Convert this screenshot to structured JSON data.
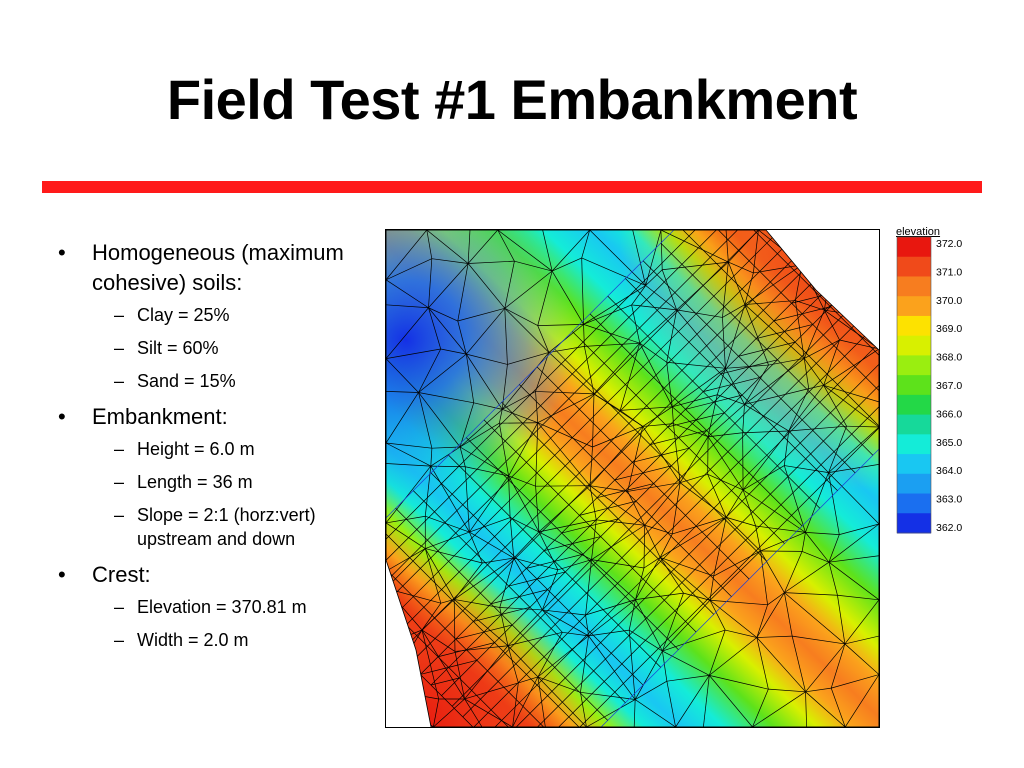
{
  "slide": {
    "title": "Field Test #1 Embankment",
    "accent_color": "#ff1a1a"
  },
  "bullets": [
    {
      "text": "Homogeneous (maximum cohesive) soils:",
      "subs": [
        "Clay = 25%",
        "Silt = 60%",
        "Sand = 15%"
      ]
    },
    {
      "text": "Embankment:",
      "subs": [
        "Height = 6.0 m",
        "Length = 36 m",
        "Slope = 2:1 (horz:vert) upstream and down"
      ]
    },
    {
      "text": "Crest:",
      "subs": [
        "Elevation = 370.81 m",
        "Width = 2.0 m"
      ]
    }
  ],
  "legend": {
    "title": "elevation",
    "labels": [
      "372.0",
      "371.0",
      "370.0",
      "369.0",
      "368.0",
      "367.0",
      "366.0",
      "365.0",
      "364.0",
      "363.0",
      "362.0"
    ],
    "colors": [
      "#e8170f",
      "#f04a1a",
      "#f77d1f",
      "#fba21c",
      "#fde200",
      "#d8f000",
      "#9aee10",
      "#5de21b",
      "#23d847",
      "#16d99a",
      "#14ecd8",
      "#19c7f2",
      "#1b9ff2",
      "#1a6ff0",
      "#1430e6"
    ]
  }
}
